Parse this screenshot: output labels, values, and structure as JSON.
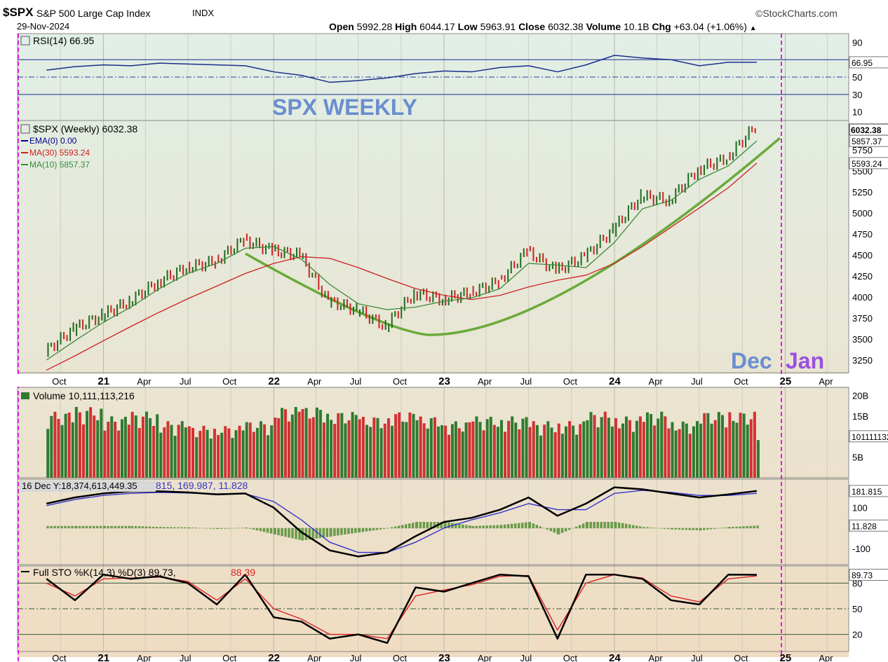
{
  "header": {
    "symbol": "$SPX",
    "name": "S&P 500 Large Cap Index",
    "exchange": "INDX",
    "date": "29-Nov-2024",
    "source": "©StockCharts.com",
    "open_label": "Open",
    "open": "5992.28",
    "high_label": "High",
    "high": "6044.17",
    "low_label": "Low",
    "low": "5963.91",
    "close_label": "Close",
    "close": "6032.38",
    "volume_label": "Volume",
    "volume": "10.1B",
    "chg_label": "Chg",
    "chg": "+63.04 (+1.06%)"
  },
  "chart_data": [
    {
      "type": "line",
      "panel": "rsi",
      "legend": "RSI(14) 66.95",
      "annotation": "SPX WEEKLY",
      "y_ticks": [
        90,
        70,
        50,
        30,
        10
      ],
      "last_value_label": "66.95",
      "guide_lines": [
        70,
        50,
        30
      ],
      "ylim": [
        0,
        100
      ],
      "x": [
        "2020-09",
        "2020-11",
        "2021-01",
        "2021-03",
        "2021-05",
        "2021-07",
        "2021-09",
        "2021-11",
        "2022-01",
        "2022-03",
        "2022-05",
        "2022-07",
        "2022-09",
        "2022-11",
        "2023-01",
        "2023-03",
        "2023-05",
        "2023-07",
        "2023-09",
        "2023-11",
        "2024-01",
        "2024-03",
        "2024-05",
        "2024-07",
        "2024-09",
        "2024-11"
      ],
      "values": [
        58,
        62,
        64,
        63,
        66,
        65,
        64,
        63,
        56,
        52,
        44,
        46,
        49,
        54,
        57,
        56,
        61,
        63,
        56,
        64,
        75,
        72,
        70,
        63,
        67,
        67
      ]
    },
    {
      "type": "line",
      "panel": "price",
      "legend": "$SPX (Weekly) 6032.38",
      "series": [
        {
          "name": "$SPX (Weekly) 6032.38",
          "color": "#1a6b1a",
          "x": [
            "2020-09",
            "2020-11",
            "2021-01",
            "2021-03",
            "2021-05",
            "2021-07",
            "2021-09",
            "2021-11",
            "2022-01",
            "2022-03",
            "2022-05",
            "2022-07",
            "2022-09",
            "2022-11",
            "2023-01",
            "2023-03",
            "2023-05",
            "2023-07",
            "2023-09",
            "2023-11",
            "2024-01",
            "2024-03",
            "2024-05",
            "2024-07",
            "2024-09",
            "2024-11"
          ],
          "values": [
            3350,
            3620,
            3780,
            3950,
            4180,
            4350,
            4420,
            4680,
            4550,
            4500,
            3950,
            3850,
            3650,
            4050,
            3970,
            4050,
            4180,
            4550,
            4310,
            4480,
            4800,
            5200,
            5150,
            5520,
            5650,
            6032
          ]
        },
        {
          "name": "EMA(0) 0.00",
          "color": "#00008b",
          "x": [],
          "values": []
        },
        {
          "name": "MA(30) 5593.24",
          "color": "#cc2222",
          "x": [
            "2020-09",
            "2020-11",
            "2021-01",
            "2021-03",
            "2021-05",
            "2021-07",
            "2021-09",
            "2021-11",
            "2022-01",
            "2022-03",
            "2022-05",
            "2022-07",
            "2022-09",
            "2022-11",
            "2023-01",
            "2023-03",
            "2023-05",
            "2023-07",
            "2023-09",
            "2023-11",
            "2024-01",
            "2024-03",
            "2024-05",
            "2024-07",
            "2024-09",
            "2024-11"
          ],
          "values": [
            3130,
            3300,
            3480,
            3650,
            3820,
            3980,
            4130,
            4280,
            4400,
            4480,
            4460,
            4350,
            4220,
            4100,
            4020,
            3970,
            4020,
            4120,
            4200,
            4260,
            4400,
            4600,
            4830,
            5060,
            5300,
            5593
          ]
        },
        {
          "name": "MA(10) 5857.37",
          "color": "#3a8a3a",
          "x": [
            "2020-09",
            "2020-11",
            "2021-01",
            "2021-03",
            "2021-05",
            "2021-07",
            "2021-09",
            "2021-11",
            "2022-01",
            "2022-03",
            "2022-05",
            "2022-07",
            "2022-09",
            "2022-11",
            "2023-01",
            "2023-03",
            "2023-05",
            "2023-07",
            "2023-09",
            "2023-11",
            "2024-01",
            "2024-03",
            "2024-05",
            "2024-07",
            "2024-09",
            "2024-11"
          ],
          "values": [
            3250,
            3480,
            3700,
            3880,
            4100,
            4280,
            4400,
            4580,
            4600,
            4450,
            4150,
            3920,
            3850,
            3880,
            3950,
            3990,
            4100,
            4400,
            4380,
            4350,
            4650,
            5050,
            5150,
            5400,
            5560,
            5857
          ]
        }
      ],
      "y_ticks": [
        3250,
        3500,
        3750,
        4000,
        4250,
        4500,
        4750,
        5000,
        5250,
        5500,
        5750
      ],
      "ylim": [
        3100,
        6100
      ],
      "value_labels": [
        "6032.38",
        "5857.37",
        "5593.24"
      ],
      "annotations": [
        "Dec",
        "Jan"
      ]
    },
    {
      "type": "bar",
      "panel": "volume",
      "legend": "Volume 10,111,113,216",
      "y_ticks": [
        "20B",
        "15B",
        "5B"
      ],
      "last_value_label": "10111113216",
      "ylim": [
        0,
        22
      ],
      "x": [
        "2020-09",
        "2020-11",
        "2021-01",
        "2021-03",
        "2021-05",
        "2021-07",
        "2021-09",
        "2021-11",
        "2022-01",
        "2022-03",
        "2022-05",
        "2022-07",
        "2022-09",
        "2022-11",
        "2023-01",
        "2023-03",
        "2023-05",
        "2023-07",
        "2023-09",
        "2023-11",
        "2024-01",
        "2024-03",
        "2024-05",
        "2024-07",
        "2024-09",
        "2024-11"
      ],
      "values": [
        14,
        15,
        13,
        14,
        12,
        11,
        11,
        12,
        15,
        15,
        14,
        13,
        14,
        13,
        12,
        13,
        13,
        12,
        12,
        14,
        13,
        14,
        12,
        14,
        14,
        10.1
      ]
    },
    {
      "type": "line",
      "panel": "macd",
      "legend": "16 Dec Y:18,374,613,449.35",
      "legend_tail": "815, 169.987, 11.828",
      "y_ticks": [
        100,
        -100
      ],
      "value_labels": [
        "181.815",
        "11.828"
      ],
      "ylim": [
        -180,
        240
      ],
      "series": [
        {
          "name": "MACD",
          "color": "#000000",
          "x": [
            "2020-09",
            "2020-11",
            "2021-01",
            "2021-03",
            "2021-05",
            "2021-07",
            "2021-09",
            "2021-11",
            "2022-01",
            "2022-03",
            "2022-05",
            "2022-07",
            "2022-09",
            "2022-11",
            "2023-01",
            "2023-03",
            "2023-05",
            "2023-07",
            "2023-09",
            "2023-11",
            "2024-01",
            "2024-03",
            "2024-05",
            "2024-07",
            "2024-09",
            "2024-11"
          ],
          "values": [
            120,
            150,
            170,
            180,
            180,
            175,
            165,
            170,
            100,
            -20,
            -110,
            -140,
            -120,
            -40,
            30,
            50,
            90,
            150,
            60,
            120,
            200,
            190,
            170,
            150,
            165,
            181.815
          ]
        },
        {
          "name": "Signal",
          "color": "#3333cc",
          "x": [
            "2020-09",
            "2020-11",
            "2021-01",
            "2021-03",
            "2021-05",
            "2021-07",
            "2021-09",
            "2021-11",
            "2022-01",
            "2022-03",
            "2022-05",
            "2022-07",
            "2022-09",
            "2022-11",
            "2023-01",
            "2023-03",
            "2023-05",
            "2023-07",
            "2023-09",
            "2023-11",
            "2024-01",
            "2024-03",
            "2024-05",
            "2024-07",
            "2024-09",
            "2024-11"
          ],
          "values": [
            110,
            140,
            160,
            170,
            175,
            172,
            168,
            168,
            130,
            40,
            -70,
            -120,
            -120,
            -70,
            0,
            40,
            75,
            120,
            90,
            90,
            170,
            185,
            175,
            160,
            160,
            169.987
          ]
        },
        {
          "name": "Histogram",
          "color": "#6a9a4a",
          "x": [
            "2020-09",
            "2020-11",
            "2021-01",
            "2021-03",
            "2021-05",
            "2021-07",
            "2021-09",
            "2021-11",
            "2022-01",
            "2022-03",
            "2022-05",
            "2022-07",
            "2022-09",
            "2022-11",
            "2023-01",
            "2023-03",
            "2023-05",
            "2023-07",
            "2023-09",
            "2023-11",
            "2024-01",
            "2024-03",
            "2024-05",
            "2024-07",
            "2024-09",
            "2024-11"
          ],
          "values": [
            10,
            10,
            10,
            10,
            5,
            3,
            -3,
            2,
            -30,
            -60,
            -40,
            -20,
            0,
            30,
            30,
            10,
            15,
            30,
            -30,
            30,
            30,
            5,
            -5,
            -10,
            5,
            11.828
          ]
        }
      ]
    },
    {
      "type": "line",
      "panel": "stochastic",
      "legend": "Full STO %K(14,3) %D(3) 89.73,",
      "legend_d": "88.39",
      "y_ticks": [
        80,
        50,
        20
      ],
      "last_value_label": "89.73",
      "guide_lines": [
        80,
        50,
        20
      ],
      "ylim": [
        0,
        100
      ],
      "series": [
        {
          "name": "%K",
          "color": "#000000",
          "x": [
            "2020-09",
            "2020-11",
            "2021-01",
            "2021-03",
            "2021-05",
            "2021-07",
            "2021-09",
            "2021-11",
            "2022-01",
            "2022-03",
            "2022-05",
            "2022-07",
            "2022-09",
            "2022-11",
            "2023-01",
            "2023-03",
            "2023-05",
            "2023-07",
            "2023-09",
            "2023-11",
            "2024-01",
            "2024-03",
            "2024-05",
            "2024-07",
            "2024-09",
            "2024-11"
          ],
          "values": [
            85,
            60,
            90,
            85,
            88,
            80,
            55,
            90,
            40,
            35,
            15,
            20,
            10,
            75,
            70,
            80,
            90,
            88,
            15,
            90,
            90,
            85,
            60,
            55,
            90,
            89.73
          ]
        },
        {
          "name": "%D",
          "color": "#dd2222",
          "x": [
            "2020-09",
            "2020-11",
            "2021-01",
            "2021-03",
            "2021-05",
            "2021-07",
            "2021-09",
            "2021-11",
            "2022-01",
            "2022-03",
            "2022-05",
            "2022-07",
            "2022-09",
            "2022-11",
            "2023-01",
            "2023-03",
            "2023-05",
            "2023-07",
            "2023-09",
            "2023-11",
            "2024-01",
            "2024-03",
            "2024-05",
            "2024-07",
            "2024-09",
            "2024-11"
          ],
          "values": [
            80,
            65,
            85,
            86,
            87,
            82,
            60,
            85,
            50,
            38,
            20,
            20,
            15,
            65,
            72,
            78,
            88,
            89,
            25,
            80,
            90,
            86,
            65,
            58,
            85,
            88.39
          ]
        }
      ]
    }
  ],
  "x_axis": {
    "labels": [
      "Oct",
      "21",
      "Apr",
      "Jul",
      "Oct",
      "22",
      "Apr",
      "Jul",
      "Oct",
      "23",
      "Apr",
      "Jul",
      "Oct",
      "24",
      "Apr",
      "Jul",
      "Oct",
      "25",
      "Apr"
    ],
    "bold_labels": [
      "21",
      "22",
      "23",
      "24",
      "25"
    ]
  },
  "colors": {
    "up": "#1e6b1e",
    "down": "#cc2222",
    "background_top": "#e1efe6",
    "background_bottom": "#f0dcc2",
    "cup_line": "#6aaa3a",
    "marker_line": "#e020e0",
    "annotation": "#6a8ecf",
    "annotation_jan": "#9a50e0"
  }
}
